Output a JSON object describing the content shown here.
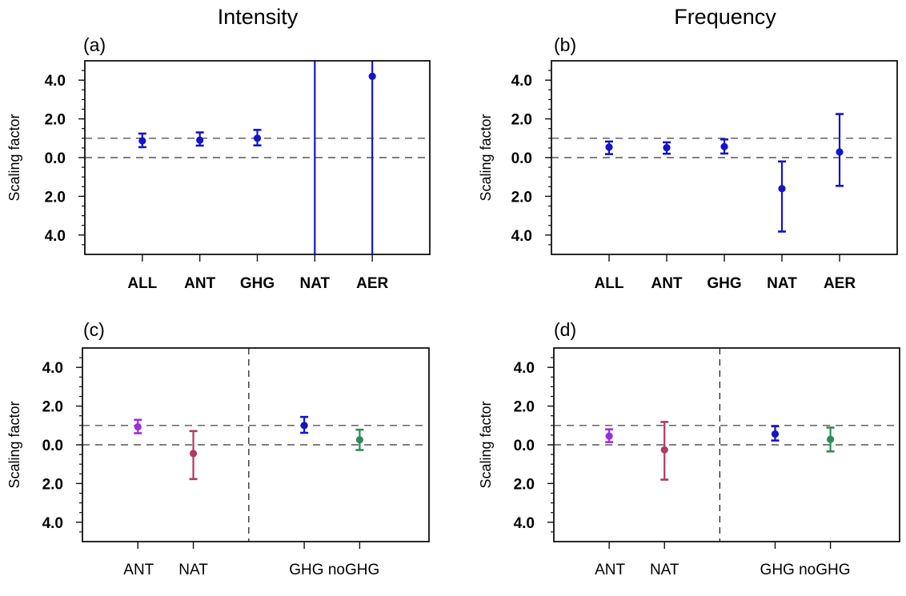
{
  "column_titles": [
    "Intensity",
    "Frequency"
  ],
  "chart_data": [
    {
      "type": "scatter",
      "subtype": "errorbar",
      "panel_label": "(a)",
      "column": "Intensity",
      "ylabel": "Scaling factor",
      "ylim": [
        -5,
        5
      ],
      "yticks": [
        4,
        2,
        0,
        -2,
        -4
      ],
      "ytick_labels": [
        "4.0",
        "2.0",
        "0.0",
        "2.0",
        "4.0"
      ],
      "yminor_step": 0.5,
      "xlim": [
        0,
        6
      ],
      "reference_lines": [
        1,
        0
      ],
      "vertical_divider": null,
      "categories": [
        "ALL",
        "ANT",
        "GHG",
        "NAT",
        "AER"
      ],
      "x": [
        1,
        2,
        3,
        4,
        5
      ],
      "points": [
        {
          "label": "ALL",
          "best": 0.87,
          "low": 0.54,
          "high": 1.24,
          "color": "#1414c8"
        },
        {
          "label": "ANT",
          "best": 0.9,
          "low": 0.62,
          "high": 1.3,
          "color": "#1414c8"
        },
        {
          "label": "GHG",
          "best": 1.0,
          "low": 0.63,
          "high": 1.43,
          "color": "#1414c8"
        },
        {
          "label": "NAT",
          "best": null,
          "low": -10,
          "high": 10,
          "color": "#1414c8",
          "note": "off-scale"
        },
        {
          "label": "AER",
          "best": 4.2,
          "low": -10,
          "high": 10,
          "color": "#1414c8",
          "note": "interval exceeds axis"
        }
      ]
    },
    {
      "type": "scatter",
      "subtype": "errorbar",
      "panel_label": "(b)",
      "column": "Frequency",
      "ylabel": "Scaling factor",
      "ylim": [
        -5,
        5
      ],
      "yticks": [
        4,
        2,
        0,
        -2,
        -4
      ],
      "ytick_labels": [
        "4.0",
        "2.0",
        "0.0",
        "2.0",
        "4.0"
      ],
      "yminor_step": 0.5,
      "xlim": [
        0,
        6
      ],
      "reference_lines": [
        1,
        0
      ],
      "vertical_divider": null,
      "categories": [
        "ALL",
        "ANT",
        "GHG",
        "NAT",
        "AER"
      ],
      "x": [
        1,
        2,
        3,
        4,
        5
      ],
      "points": [
        {
          "label": "ALL",
          "best": 0.54,
          "low": 0.18,
          "high": 0.83,
          "color": "#1414c8"
        },
        {
          "label": "ANT",
          "best": 0.51,
          "low": 0.2,
          "high": 0.79,
          "color": "#1414c8"
        },
        {
          "label": "GHG",
          "best": 0.57,
          "low": 0.21,
          "high": 0.94,
          "color": "#1414c8"
        },
        {
          "label": "NAT",
          "best": -1.6,
          "low": -3.82,
          "high": -0.2,
          "color": "#1414c8"
        },
        {
          "label": "AER",
          "best": 0.29,
          "low": -1.46,
          "high": 2.25,
          "color": "#1414c8"
        }
      ]
    },
    {
      "type": "scatter",
      "subtype": "errorbar",
      "panel_label": "(c)",
      "column": "Intensity",
      "ylabel": "Scaling factor",
      "ylim": [
        -5,
        5
      ],
      "yticks": [
        4,
        2,
        0,
        -2,
        -4
      ],
      "ytick_labels": [
        "4.0",
        "2.0",
        "0.0",
        "2.0",
        "4.0"
      ],
      "yminor_step": 0.5,
      "xlim": [
        0,
        6.25
      ],
      "reference_lines": [
        1,
        0
      ],
      "vertical_divider": 3,
      "categories": [
        "ANT",
        "NAT",
        "GHG",
        "noGHG"
      ],
      "x": [
        1,
        2,
        4,
        5
      ],
      "xtick_text": [
        "ANT",
        "NAT",
        "GHG noGHG"
      ],
      "points": [
        {
          "label": "ANT",
          "best": 0.93,
          "low": 0.6,
          "high": 1.29,
          "color": "#9b2fe0"
        },
        {
          "label": "NAT",
          "best": -0.45,
          "low": -1.77,
          "high": 0.71,
          "color": "#b03a62"
        },
        {
          "label": "GHG",
          "best": 1.0,
          "low": 0.62,
          "high": 1.44,
          "color": "#1414c8"
        },
        {
          "label": "noGHG",
          "best": 0.26,
          "low": -0.27,
          "high": 0.78,
          "color": "#2e8b57"
        }
      ]
    },
    {
      "type": "scatter",
      "subtype": "errorbar",
      "panel_label": "(d)",
      "column": "Frequency",
      "ylabel": "Scaling factor",
      "ylim": [
        -5,
        5
      ],
      "yticks": [
        4,
        2,
        0,
        -2,
        -4
      ],
      "ytick_labels": [
        "4.0",
        "2.0",
        "0.0",
        "2.0",
        "4.0"
      ],
      "yminor_step": 0.5,
      "xlim": [
        0,
        6.25
      ],
      "reference_lines": [
        1,
        0
      ],
      "vertical_divider": 3,
      "categories": [
        "ANT",
        "NAT",
        "GHG",
        "noGHG"
      ],
      "x": [
        1,
        2,
        4,
        5
      ],
      "xtick_text": [
        "ANT",
        "NAT",
        "GHG noGHG"
      ],
      "points": [
        {
          "label": "ANT",
          "best": 0.45,
          "low": 0.14,
          "high": 0.8,
          "color": "#9b2fe0"
        },
        {
          "label": "NAT",
          "best": -0.26,
          "low": -1.8,
          "high": 1.18,
          "color": "#b03a62"
        },
        {
          "label": "GHG",
          "best": 0.56,
          "low": 0.22,
          "high": 0.96,
          "color": "#1414c8"
        },
        {
          "label": "noGHG",
          "best": 0.28,
          "low": -0.34,
          "high": 0.89,
          "color": "#2e8b57"
        }
      ]
    }
  ]
}
